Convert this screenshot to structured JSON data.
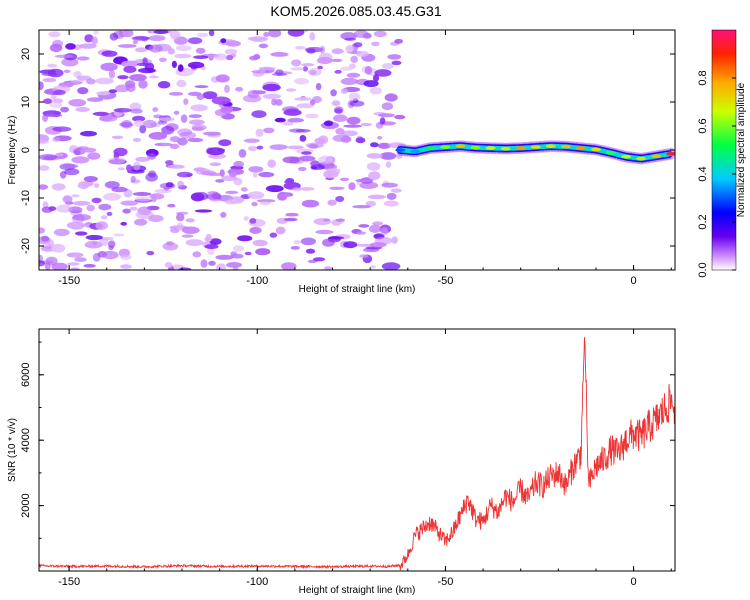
{
  "figure_title": "KOM5.2026.085.03.45.G31",
  "chart_data": [
    {
      "type": "heatmap",
      "title": "KOM5.2026.085.03.45.G31",
      "xlabel": "Height of straight line (km)",
      "ylabel": "Frequency (Hz)",
      "xlim": [
        -158,
        11
      ],
      "ylim": [
        -25,
        25
      ],
      "xticks": [
        -150,
        -100,
        -50,
        0
      ],
      "yticks": [
        -20,
        -10,
        0,
        10,
        20
      ],
      "noise_region": {
        "x": [
          -158,
          -62
        ],
        "description": "scattered low-amplitude purple noise"
      },
      "signal_track": {
        "x": [
          -62,
          -58,
          -54,
          -50,
          -46,
          -42,
          -38,
          -34,
          -30,
          -26,
          -22,
          -18,
          -14,
          -10,
          -6,
          -2,
          2,
          6,
          10
        ],
        "y": [
          0.0,
          -0.3,
          0.4,
          0.6,
          0.8,
          0.5,
          0.4,
          0.3,
          0.4,
          0.6,
          0.8,
          0.7,
          0.4,
          0.1,
          -0.6,
          -1.4,
          -1.8,
          -1.3,
          -0.8
        ],
        "amplitude": [
          0.3,
          0.35,
          0.5,
          0.6,
          0.75,
          0.6,
          0.65,
          0.7,
          0.8,
          0.7,
          0.7,
          0.75,
          0.8,
          0.7,
          0.55,
          0.65,
          0.7,
          0.75,
          0.95
        ]
      },
      "colorbar": {
        "label": "Normalized spectral amplitude",
        "range": [
          0,
          1
        ],
        "ticks": [
          "0.0",
          "0.2",
          "0.4",
          "0.6",
          "0.8"
        ]
      }
    },
    {
      "type": "line",
      "xlabel": "Height of straight line (km)",
      "ylabel": "SNR (10 * v/v)",
      "xlim": [
        -158,
        11
      ],
      "ylim": [
        0,
        7400
      ],
      "xticks": [
        -150,
        -100,
        -50,
        0
      ],
      "yticks": [
        2000,
        4000,
        6000
      ],
      "color": "#ee3333",
      "series": [
        {
          "name": "SNR",
          "x": [
            -158,
            -150,
            -140,
            -130,
            -120,
            -110,
            -100,
            -90,
            -80,
            -70,
            -65,
            -62,
            -60,
            -58,
            -56,
            -54,
            -52,
            -50,
            -48,
            -46,
            -44,
            -42,
            -40,
            -38,
            -36,
            -34,
            -32,
            -30,
            -28,
            -26,
            -24,
            -22,
            -20,
            -18,
            -16,
            -14,
            -13,
            -12,
            -10,
            -8,
            -6,
            -4,
            -2,
            0,
            2,
            4,
            6,
            8,
            10,
            11
          ],
          "y": [
            120,
            100,
            110,
            90,
            120,
            100,
            110,
            100,
            90,
            110,
            100,
            140,
            500,
            1100,
            1300,
            1500,
            1200,
            900,
            1200,
            1700,
            2200,
            1600,
            1500,
            2000,
            1800,
            2300,
            2100,
            2500,
            2200,
            2700,
            2600,
            2900,
            3000,
            2600,
            3200,
            3600,
            7300,
            2600,
            3200,
            3400,
            3700,
            3600,
            4000,
            4200,
            4100,
            4400,
            4600,
            4900,
            5200,
            5000
          ]
        }
      ]
    }
  ]
}
